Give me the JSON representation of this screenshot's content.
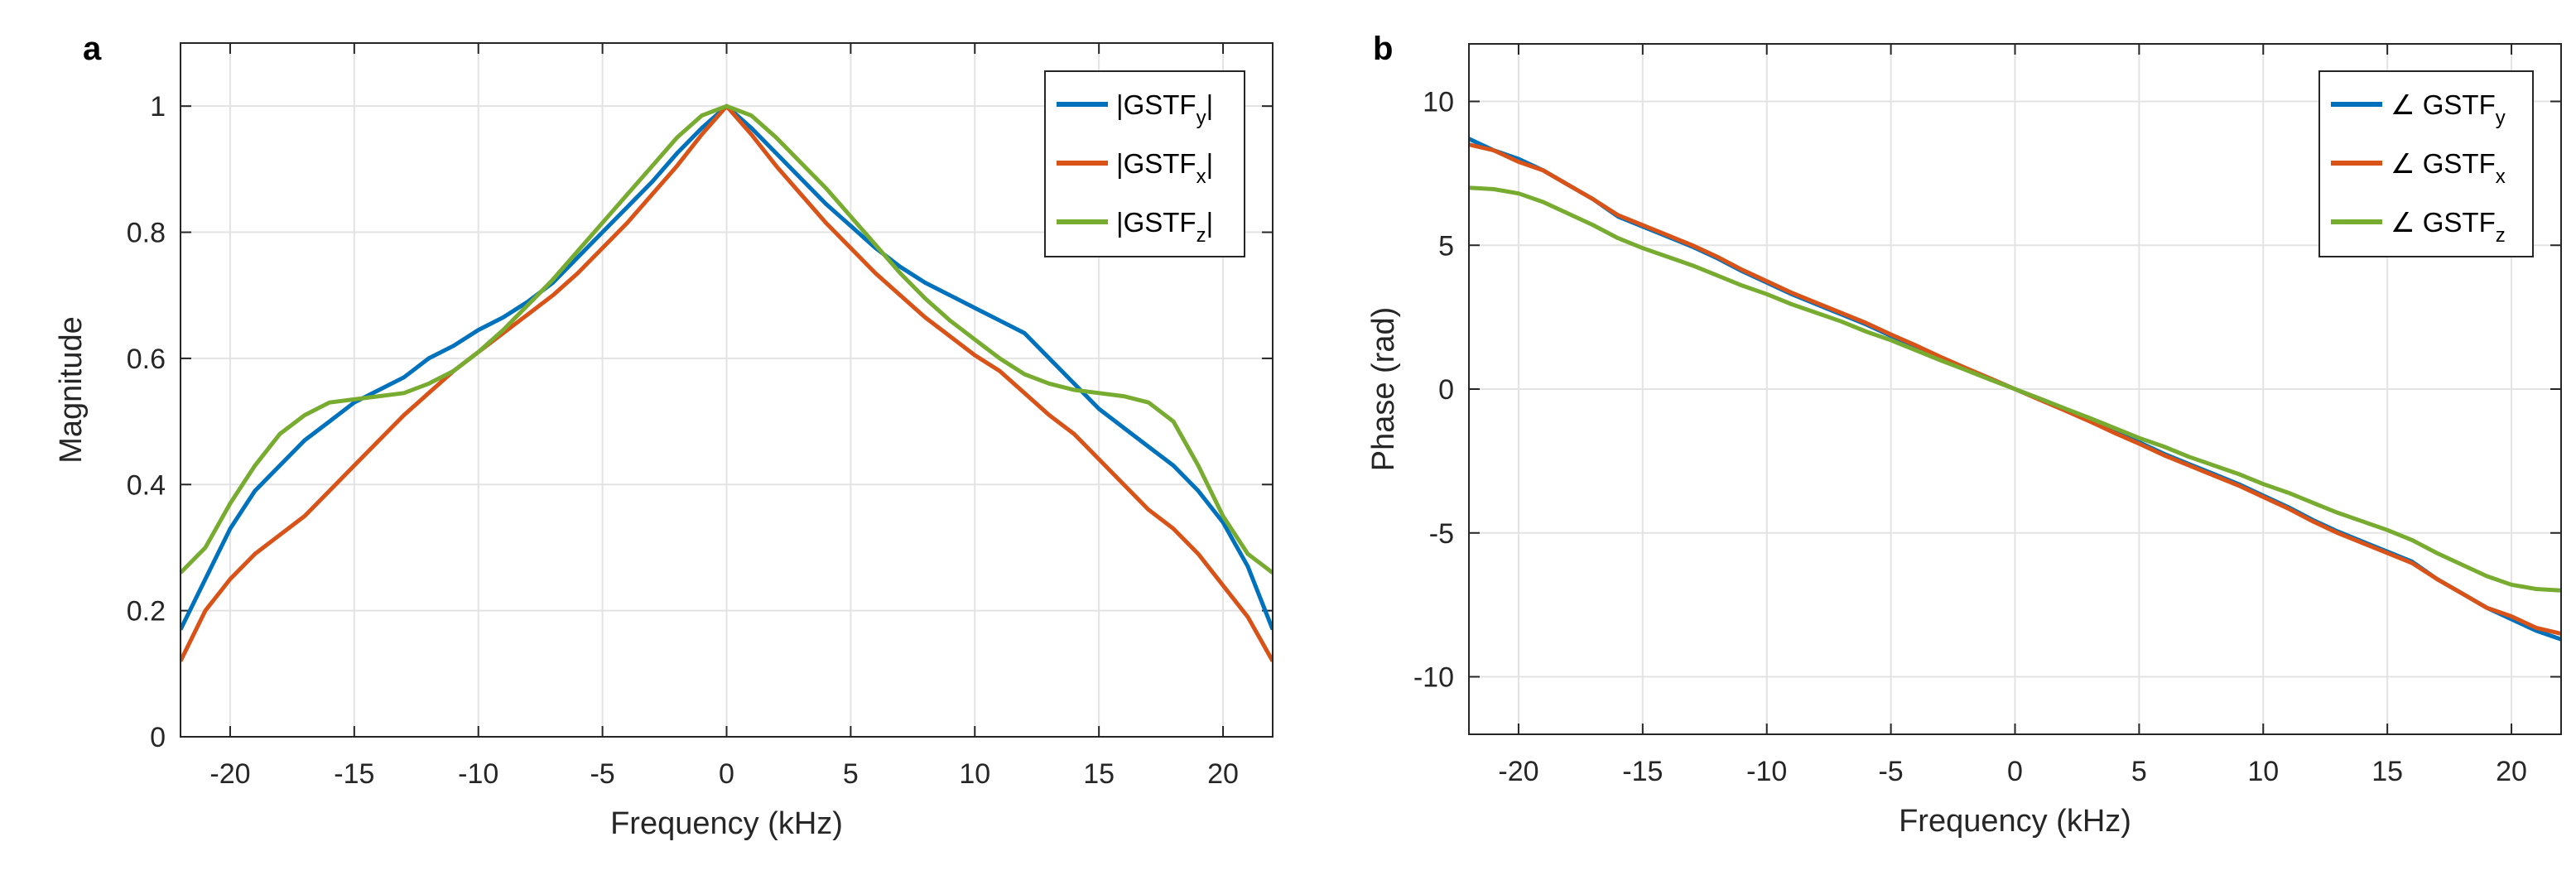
{
  "chart_data": [
    {
      "panel_label": "a",
      "type": "line",
      "xlabel": "Frequency (kHz)",
      "ylabel": "Magnitude",
      "xlim": [
        -22,
        22
      ],
      "ylim": [
        0,
        1.1
      ],
      "xticks": [
        -20,
        -15,
        -10,
        -5,
        0,
        5,
        10,
        15,
        20
      ],
      "yticks": [
        0,
        0.2,
        0.4,
        0.6,
        0.8,
        1
      ],
      "grid": true,
      "legend_position": "top-right",
      "x": [
        -22,
        -21,
        -20,
        -19,
        -18,
        -17,
        -16,
        -15,
        -14,
        -13,
        -12,
        -11,
        -10,
        -9,
        -8,
        -7,
        -6,
        -5,
        -4,
        -3,
        -2,
        -1,
        0,
        1,
        2,
        3,
        4,
        5,
        6,
        7,
        8,
        9,
        10,
        11,
        12,
        13,
        14,
        15,
        16,
        17,
        18,
        19,
        20,
        21,
        22
      ],
      "series": [
        {
          "name": "|GSTFy|",
          "legend": {
            "pre": "|GSTF",
            "sub": "y",
            "post": "|"
          },
          "color": "#0072BD",
          "values": [
            0.17,
            0.25,
            0.33,
            0.39,
            0.43,
            0.47,
            0.5,
            0.53,
            0.55,
            0.57,
            0.6,
            0.62,
            0.645,
            0.665,
            0.69,
            0.72,
            0.76,
            0.8,
            0.84,
            0.88,
            0.925,
            0.965,
            1.0,
            0.965,
            0.925,
            0.885,
            0.845,
            0.81,
            0.775,
            0.745,
            0.72,
            0.7,
            0.68,
            0.66,
            0.64,
            0.6,
            0.56,
            0.52,
            0.49,
            0.46,
            0.43,
            0.39,
            0.34,
            0.27,
            0.17
          ]
        },
        {
          "name": "|GSTFx|",
          "legend": {
            "pre": "|GSTF",
            "sub": "x",
            "post": "|"
          },
          "color": "#D95319",
          "values": [
            0.12,
            0.2,
            0.25,
            0.29,
            0.32,
            0.35,
            0.39,
            0.43,
            0.47,
            0.51,
            0.545,
            0.58,
            0.61,
            0.64,
            0.67,
            0.7,
            0.735,
            0.775,
            0.815,
            0.86,
            0.905,
            0.955,
            1.0,
            0.955,
            0.905,
            0.86,
            0.815,
            0.775,
            0.735,
            0.7,
            0.665,
            0.635,
            0.605,
            0.58,
            0.545,
            0.51,
            0.48,
            0.44,
            0.4,
            0.36,
            0.33,
            0.29,
            0.24,
            0.19,
            0.12
          ]
        },
        {
          "name": "|GSTFz|",
          "legend": {
            "pre": "|GSTF",
            "sub": "z",
            "post": "|"
          },
          "color": "#77AC30",
          "values": [
            0.26,
            0.3,
            0.37,
            0.43,
            0.48,
            0.51,
            0.53,
            0.535,
            0.54,
            0.545,
            0.56,
            0.58,
            0.61,
            0.645,
            0.685,
            0.725,
            0.77,
            0.815,
            0.86,
            0.905,
            0.95,
            0.985,
            1.0,
            0.985,
            0.95,
            0.91,
            0.87,
            0.825,
            0.78,
            0.735,
            0.695,
            0.66,
            0.63,
            0.6,
            0.575,
            0.56,
            0.55,
            0.545,
            0.54,
            0.53,
            0.5,
            0.43,
            0.35,
            0.29,
            0.26
          ]
        }
      ]
    },
    {
      "panel_label": "b",
      "type": "line",
      "xlabel": "Frequency (kHz)",
      "ylabel": "Phase (rad)",
      "xlim": [
        -22,
        22
      ],
      "ylim": [
        -12,
        12
      ],
      "xticks": [
        -20,
        -15,
        -10,
        -5,
        0,
        5,
        10,
        15,
        20
      ],
      "yticks": [
        -10,
        -5,
        0,
        5,
        10
      ],
      "grid": true,
      "legend_position": "top-right",
      "x": [
        -22,
        -21,
        -20,
        -19,
        -18,
        -17,
        -16,
        -15,
        -14,
        -13,
        -12,
        -11,
        -10,
        -9,
        -8,
        -7,
        -6,
        -5,
        -4,
        -3,
        -2,
        -1,
        0,
        1,
        2,
        3,
        4,
        5,
        6,
        7,
        8,
        9,
        10,
        11,
        12,
        13,
        14,
        15,
        16,
        17,
        18,
        19,
        20,
        21,
        22
      ],
      "series": [
        {
          "name": "∠ GSTFy",
          "legend": {
            "pre": "∠ GSTF",
            "sub": "y",
            "post": ""
          },
          "color": "#0072BD",
          "values": [
            8.7,
            8.3,
            8.0,
            7.6,
            7.1,
            6.6,
            6.0,
            5.65,
            5.3,
            4.95,
            4.55,
            4.1,
            3.7,
            3.3,
            2.95,
            2.6,
            2.25,
            1.85,
            1.5,
            1.1,
            0.72,
            0.36,
            0,
            -0.36,
            -0.72,
            -1.1,
            -1.5,
            -1.85,
            -2.25,
            -2.6,
            -2.95,
            -3.3,
            -3.7,
            -4.1,
            -4.55,
            -4.95,
            -5.3,
            -5.65,
            -6.0,
            -6.6,
            -7.1,
            -7.6,
            -8.0,
            -8.4,
            -8.7
          ]
        },
        {
          "name": "∠ GSTFx",
          "legend": {
            "pre": "∠ GSTF",
            "sub": "x",
            "post": ""
          },
          "color": "#D95319",
          "values": [
            8.5,
            8.3,
            7.9,
            7.6,
            7.1,
            6.6,
            6.05,
            5.7,
            5.35,
            5.0,
            4.6,
            4.15,
            3.75,
            3.35,
            3.0,
            2.65,
            2.3,
            1.9,
            1.52,
            1.12,
            0.74,
            0.37,
            0,
            -0.37,
            -0.74,
            -1.12,
            -1.52,
            -1.9,
            -2.3,
            -2.65,
            -3.0,
            -3.35,
            -3.75,
            -4.15,
            -4.6,
            -5.0,
            -5.35,
            -5.7,
            -6.05,
            -6.6,
            -7.1,
            -7.6,
            -7.9,
            -8.3,
            -8.5
          ]
        },
        {
          "name": "∠ GSTFz",
          "legend": {
            "pre": "∠ GSTF",
            "sub": "z",
            "post": ""
          },
          "color": "#77AC30",
          "values": [
            7.0,
            6.95,
            6.8,
            6.5,
            6.1,
            5.7,
            5.25,
            4.9,
            4.6,
            4.3,
            3.95,
            3.6,
            3.3,
            2.95,
            2.65,
            2.35,
            2.0,
            1.7,
            1.35,
            1.0,
            0.67,
            0.33,
            0,
            -0.33,
            -0.67,
            -1.0,
            -1.35,
            -1.7,
            -2.0,
            -2.35,
            -2.65,
            -2.95,
            -3.3,
            -3.6,
            -3.95,
            -4.3,
            -4.6,
            -4.9,
            -5.25,
            -5.7,
            -6.1,
            -6.5,
            -6.8,
            -6.95,
            -7.0
          ]
        }
      ]
    }
  ]
}
